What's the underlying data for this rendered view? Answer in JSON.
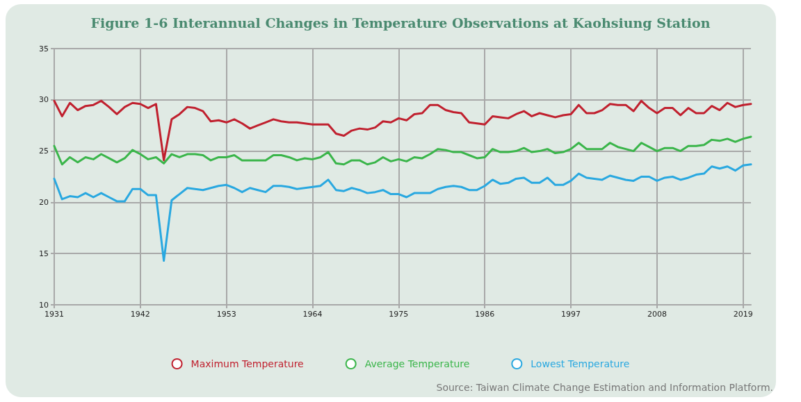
{
  "chart_data": {
    "type": "line",
    "title": "Figure 1-6 Interannual Changes in Temperature Observations at Kaohsiung Station",
    "annotations": [
      "Source: Taiwan Climate Change Estimation and Information Platform."
    ],
    "x": [
      1931,
      1932,
      1933,
      1934,
      1935,
      1936,
      1937,
      1938,
      1939,
      1940,
      1941,
      1942,
      1943,
      1944,
      1945,
      1946,
      1947,
      1948,
      1949,
      1950,
      1951,
      1952,
      1953,
      1954,
      1955,
      1956,
      1957,
      1958,
      1959,
      1960,
      1961,
      1962,
      1963,
      1964,
      1965,
      1966,
      1967,
      1968,
      1969,
      1970,
      1971,
      1972,
      1973,
      1974,
      1975,
      1976,
      1977,
      1978,
      1979,
      1980,
      1981,
      1982,
      1983,
      1984,
      1985,
      1986,
      1987,
      1988,
      1989,
      1990,
      1991,
      1992,
      1993,
      1994,
      1995,
      1996,
      1997,
      1998,
      1999,
      2000,
      2001,
      2002,
      2003,
      2004,
      2005,
      2006,
      2007,
      2008,
      2009,
      2010,
      2011,
      2012,
      2013,
      2014,
      2015,
      2016,
      2017,
      2018,
      2019,
      2020
    ],
    "series": [
      {
        "name": "Maximum Temperature",
        "color": "#c0202e",
        "values": [
          29.9,
          28.4,
          29.7,
          29.0,
          29.4,
          29.5,
          29.9,
          29.3,
          28.6,
          29.3,
          29.7,
          29.6,
          29.2,
          29.6,
          24.1,
          28.1,
          28.6,
          29.3,
          29.2,
          28.9,
          27.9,
          28.0,
          27.8,
          28.1,
          27.7,
          27.2,
          27.5,
          27.8,
          28.1,
          27.9,
          27.8,
          27.8,
          27.7,
          27.6,
          27.6,
          27.6,
          26.7,
          26.5,
          27.0,
          27.2,
          27.1,
          27.3,
          27.9,
          27.8,
          28.2,
          28.0,
          28.6,
          28.7,
          29.5,
          29.5,
          29.0,
          28.8,
          28.7,
          27.8,
          27.7,
          27.6,
          28.4,
          28.3,
          28.2,
          28.6,
          28.9,
          28.4,
          28.7,
          28.5,
          28.3,
          28.5,
          28.6,
          29.5,
          28.7,
          28.7,
          29.0,
          29.6,
          29.5,
          29.5,
          28.9,
          29.9,
          29.2,
          28.7,
          29.2,
          29.2,
          28.5,
          29.2,
          28.7,
          28.7,
          29.4,
          29.0,
          29.7,
          29.3,
          29.5,
          29.6
        ]
      },
      {
        "name": "Average Temperature",
        "color": "#3ab54a",
        "values": [
          25.5,
          23.7,
          24.4,
          23.9,
          24.4,
          24.2,
          24.7,
          24.3,
          23.9,
          24.3,
          25.1,
          24.7,
          24.2,
          24.4,
          23.8,
          24.7,
          24.4,
          24.7,
          24.7,
          24.6,
          24.1,
          24.4,
          24.4,
          24.6,
          24.1,
          24.1,
          24.1,
          24.1,
          24.6,
          24.6,
          24.4,
          24.1,
          24.3,
          24.2,
          24.4,
          24.9,
          23.8,
          23.7,
          24.1,
          24.1,
          23.7,
          23.9,
          24.4,
          24.0,
          24.2,
          24.0,
          24.4,
          24.3,
          24.7,
          25.2,
          25.1,
          24.9,
          24.9,
          24.6,
          24.3,
          24.4,
          25.2,
          24.9,
          24.9,
          25.0,
          25.3,
          24.9,
          25.0,
          25.2,
          24.8,
          24.9,
          25.2,
          25.8,
          25.2,
          25.2,
          25.2,
          25.8,
          25.4,
          25.2,
          25.0,
          25.8,
          25.4,
          25.0,
          25.3,
          25.3,
          25.0,
          25.5,
          25.5,
          25.6,
          26.1,
          26.0,
          26.2,
          25.9,
          26.2,
          26.4
        ]
      },
      {
        "name": "Lowest Temperature",
        "color": "#29a8e0",
        "values": [
          22.3,
          20.3,
          20.6,
          20.5,
          20.9,
          20.5,
          20.9,
          20.5,
          20.1,
          20.1,
          21.3,
          21.3,
          20.7,
          20.7,
          14.3,
          20.2,
          20.8,
          21.4,
          21.3,
          21.2,
          21.4,
          21.6,
          21.7,
          21.4,
          21.0,
          21.4,
          21.2,
          21.0,
          21.6,
          21.6,
          21.5,
          21.3,
          21.4,
          21.5,
          21.6,
          22.2,
          21.2,
          21.1,
          21.4,
          21.2,
          20.9,
          21.0,
          21.2,
          20.8,
          20.8,
          20.5,
          20.9,
          20.9,
          20.9,
          21.3,
          21.5,
          21.6,
          21.5,
          21.2,
          21.2,
          21.6,
          22.2,
          21.8,
          21.9,
          22.3,
          22.4,
          21.9,
          21.9,
          22.4,
          21.7,
          21.7,
          22.1,
          22.8,
          22.4,
          22.3,
          22.2,
          22.6,
          22.4,
          22.2,
          22.1,
          22.5,
          22.5,
          22.1,
          22.4,
          22.5,
          22.2,
          22.4,
          22.7,
          22.8,
          23.5,
          23.3,
          23.5,
          23.1,
          23.6,
          23.7
        ]
      }
    ],
    "xlim": [
      1931,
      2020
    ],
    "xticks": [
      1931,
      1942,
      1953,
      1964,
      1975,
      1986,
      1997,
      2008,
      2019
    ],
    "ylim": [
      10,
      35
    ],
    "yticks": [
      10,
      15,
      20,
      25,
      30,
      35
    ],
    "grid": true,
    "legend": "bottom",
    "marker": "none",
    "line_style": "solid"
  }
}
